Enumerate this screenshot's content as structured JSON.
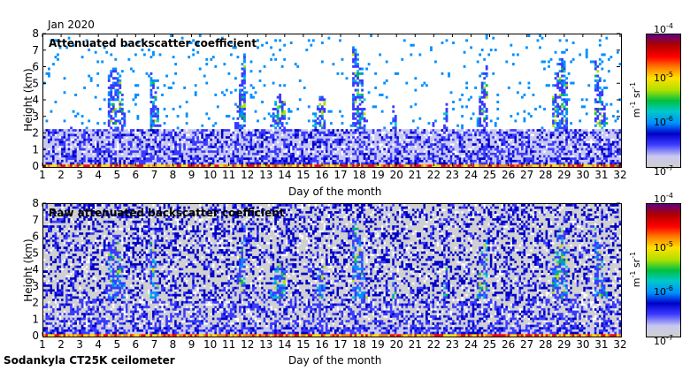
{
  "header": {
    "date_label": "Jan 2020"
  },
  "footer": {
    "instrument": "Sodankyla CT25K ceilometer"
  },
  "colors": {
    "colormap": [
      "#d0d0d0",
      "#c8c8f0",
      "#3a3aff",
      "#0000c8",
      "#0090ff",
      "#00c8c8",
      "#00c040",
      "#b0e000",
      "#ffe000",
      "#ff8000",
      "#ff0000",
      "#b00000",
      "#600080"
    ]
  },
  "colorbar": {
    "tick_labels": [
      "10^-4",
      "10^-5",
      "10^-6",
      "10^-7"
    ],
    "unit_label": "m^-1 sr^-1"
  },
  "chart_data": [
    {
      "type": "heatmap",
      "title": "Attenuated backscatter coefficient",
      "xlabel": "Day of the month",
      "ylabel": "Height (km)",
      "x_ticks": [
        1,
        2,
        3,
        4,
        5,
        6,
        7,
        8,
        9,
        10,
        11,
        12,
        13,
        14,
        15,
        16,
        17,
        18,
        19,
        20,
        21,
        22,
        23,
        24,
        25,
        26,
        27,
        28,
        29,
        30,
        31,
        32
      ],
      "y_ticks": [
        0,
        1,
        2,
        3,
        4,
        5,
        6,
        7,
        8
      ],
      "xlim": [
        1,
        32
      ],
      "ylim": [
        0,
        8
      ],
      "color_scale": "log",
      "clim": [
        1e-07,
        0.0001
      ]
    },
    {
      "type": "heatmap",
      "title": "Raw attenuated backscatter coefficient",
      "xlabel": "Day of the month",
      "ylabel": "Height (km)",
      "x_ticks": [
        1,
        2,
        3,
        4,
        5,
        6,
        7,
        8,
        9,
        10,
        11,
        12,
        13,
        14,
        15,
        16,
        17,
        18,
        19,
        20,
        21,
        22,
        23,
        24,
        25,
        26,
        27,
        28,
        29,
        30,
        31,
        32
      ],
      "y_ticks": [
        0,
        1,
        2,
        3,
        4,
        5,
        6,
        7,
        8
      ],
      "xlim": [
        1,
        32
      ],
      "ylim": [
        0,
        8
      ],
      "color_scale": "log",
      "clim": [
        1e-07,
        0.0001
      ]
    }
  ]
}
